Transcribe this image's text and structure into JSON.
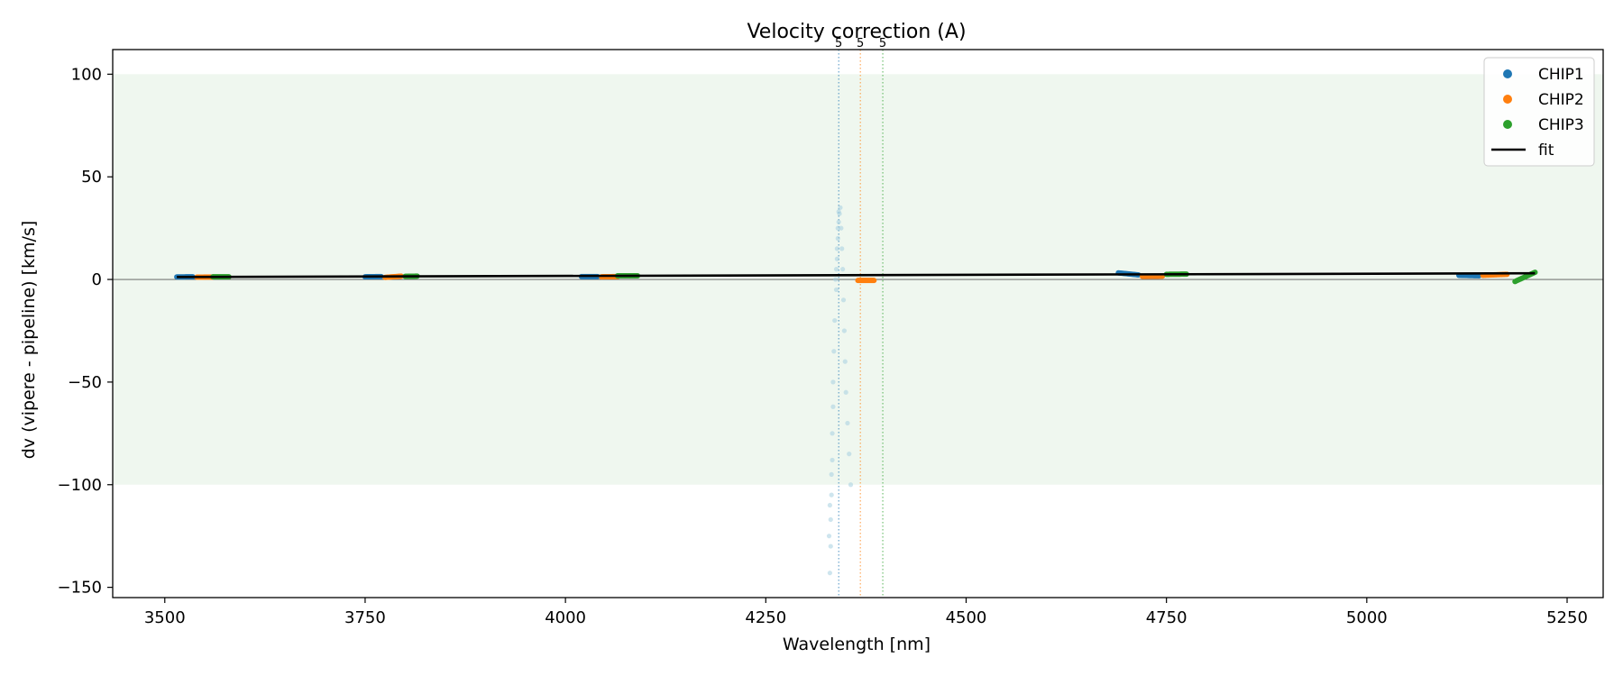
{
  "chart_data": {
    "type": "scatter",
    "title": "Velocity correction (A)",
    "xlabel": "Wavelength [nm]",
    "ylabel": "dv (vipere - pipeline) [km/s]",
    "xlim": [
      3435,
      5295
    ],
    "ylim": [
      -155,
      112
    ],
    "xticks": [
      3500,
      3750,
      4000,
      4250,
      4500,
      4750,
      5000,
      5250
    ],
    "yticks": [
      -150,
      -100,
      -50,
      0,
      50,
      100
    ],
    "xtick_labels": [
      "3500",
      "3750",
      "4000",
      "4250",
      "4500",
      "4750",
      "5000",
      "5250"
    ],
    "ytick_labels": [
      "−150",
      "−100",
      "−50",
      "0",
      "50",
      "100"
    ],
    "shaded_band": {
      "y0": -100,
      "y1": 100,
      "color": "#e8f4e8"
    },
    "zero_line": 0,
    "legend_position": "top-right",
    "series": [
      {
        "name": "CHIP1",
        "color": "#1f77b4",
        "marker": "circle",
        "segments": [
          {
            "x0": 3515,
            "x1": 3535,
            "y0": 1.2,
            "y1": 1.3
          },
          {
            "x0": 3750,
            "x1": 3770,
            "y0": 1.3,
            "y1": 1.4
          },
          {
            "x0": 4020,
            "x1": 4040,
            "y0": 1.4,
            "y1": 1.4
          },
          {
            "x0": 4690,
            "x1": 4715,
            "y0": 3.2,
            "y1": 2.2
          },
          {
            "x0": 5115,
            "x1": 5140,
            "y0": 2.0,
            "y1": 1.8
          }
        ]
      },
      {
        "name": "CHIP2",
        "color": "#ff7f0e",
        "marker": "circle",
        "segments": [
          {
            "x0": 3540,
            "x1": 3560,
            "y0": 1.1,
            "y1": 1.2
          },
          {
            "x0": 3775,
            "x1": 3795,
            "y0": 1.0,
            "y1": 1.6
          },
          {
            "x0": 4045,
            "x1": 4065,
            "y0": 1.3,
            "y1": 1.4
          },
          {
            "x0": 4365,
            "x1": 4385,
            "y0": -0.5,
            "y1": -0.5
          },
          {
            "x0": 4720,
            "x1": 4745,
            "y0": 1.5,
            "y1": 1.6
          },
          {
            "x0": 5145,
            "x1": 5175,
            "y0": 2.0,
            "y1": 2.5
          }
        ]
      },
      {
        "name": "CHIP3",
        "color": "#2ca02c",
        "marker": "circle",
        "segments": [
          {
            "x0": 3560,
            "x1": 3580,
            "y0": 1.3,
            "y1": 1.3
          },
          {
            "x0": 3800,
            "x1": 3815,
            "y0": 1.5,
            "y1": 1.6
          },
          {
            "x0": 4065,
            "x1": 4090,
            "y0": 1.8,
            "y1": 1.8
          },
          {
            "x0": 4750,
            "x1": 4775,
            "y0": 2.5,
            "y1": 2.6
          },
          {
            "x0": 5185,
            "x1": 5210,
            "y0": -1.0,
            "y1": 3.5
          }
        ]
      },
      {
        "name": "fit",
        "color": "#000000",
        "marker": "line",
        "x": [
          3515,
          5210
        ],
        "y": [
          1.2,
          3.0
        ]
      }
    ],
    "outlier_points": {
      "color": "#a6cfe0",
      "x": [
        4338,
        4339,
        4340,
        4341,
        4342,
        4343,
        4344,
        4345,
        4346,
        4347,
        4348,
        4349,
        4350,
        4352,
        4354,
        4356,
        4336,
        4335,
        4334,
        4334,
        4333,
        4333,
        4332,
        4332,
        4331,
        4331,
        4330,
        4330,
        4329,
        4337,
        4338,
        4339,
        4340,
        4341
      ],
      "y": [
        -5,
        10,
        20,
        28,
        32,
        35,
        25,
        15,
        5,
        -10,
        -25,
        -40,
        -55,
        -70,
        -85,
        -100,
        -20,
        -35,
        -50,
        -62,
        -75,
        -88,
        -95,
        -105,
        -117,
        -130,
        -143,
        -110,
        -125,
        0,
        5,
        15,
        25,
        33
      ]
    },
    "markers": [
      {
        "label": "5",
        "x": 4341,
        "color": "#1f77b4"
      },
      {
        "label": "5",
        "x": 4368,
        "color": "#ff7f0e"
      },
      {
        "label": "5",
        "x": 4396,
        "color": "#2ca02c"
      }
    ]
  }
}
